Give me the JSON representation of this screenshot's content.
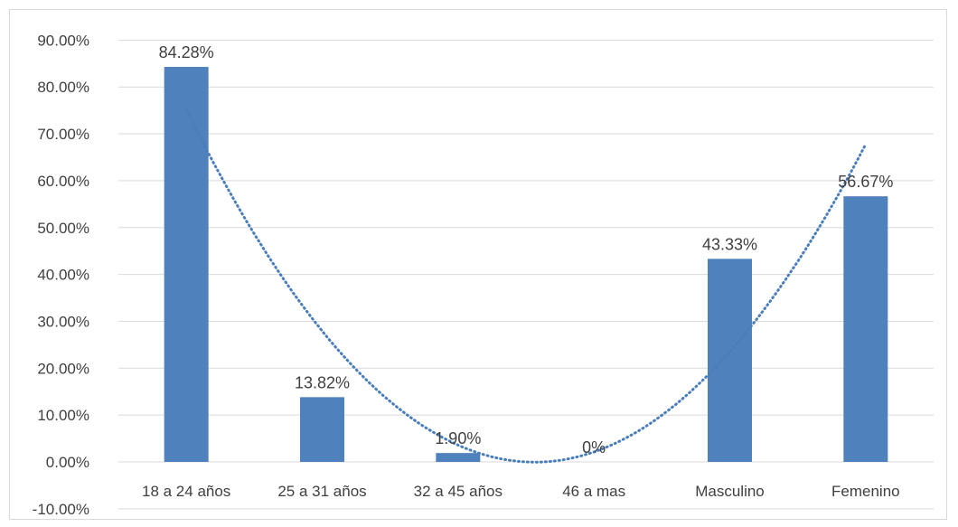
{
  "chart_data": {
    "type": "bar",
    "categories": [
      "18 a 24 años",
      "25 a 31 años",
      "32 a 45 años",
      "46 a mas",
      "Masculino",
      "Femenino"
    ],
    "values": [
      84.28,
      13.82,
      1.9,
      0,
      43.33,
      56.67
    ],
    "data_labels": [
      "84.28%",
      "13.82%",
      "1.90%",
      "0%",
      "43.33%",
      "56.67%"
    ],
    "ylim": [
      -10,
      90
    ],
    "yticks": [
      -10,
      0,
      10,
      20,
      30,
      40,
      50,
      60,
      70,
      80,
      90
    ],
    "ytick_labels": [
      "-10.00%",
      "0.00%",
      "10.00%",
      "20.00%",
      "30.00%",
      "40.00%",
      "50.00%",
      "60.00%",
      "70.00%",
      "80.00%",
      "90.00%"
    ],
    "title": "",
    "xlabel": "",
    "ylabel": "",
    "grid": true,
    "trendline": {
      "type": "polynomial",
      "style": "dotted"
    },
    "colors": {
      "bar": "#4f81bd",
      "trendline": "#4a7ebb",
      "grid": "#d9d9d9",
      "text": "#404040"
    }
  }
}
